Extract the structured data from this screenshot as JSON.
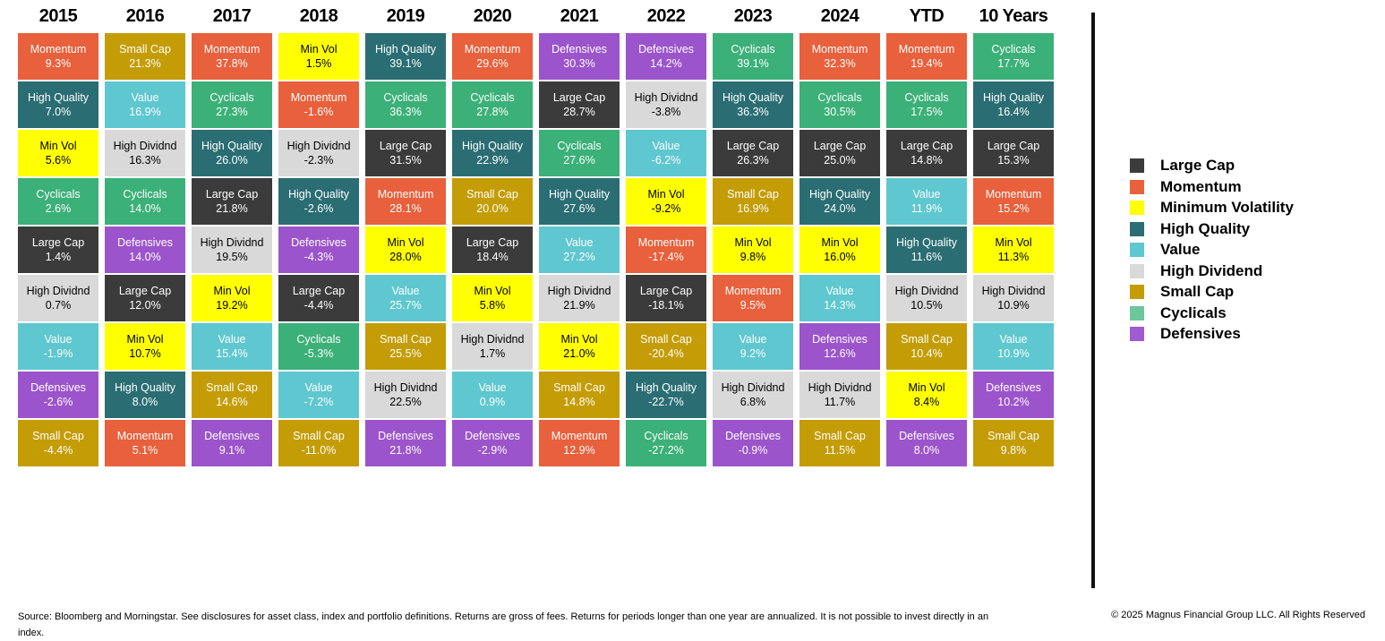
{
  "chart_data": {
    "type": "table",
    "title": "",
    "layout": {
      "columns_order": "ranked best-to-worst top-to-bottom",
      "legend_position": "right"
    },
    "factor_styles": {
      "Large Cap": {
        "bg": "#3b3b3b",
        "text": "#ffffff"
      },
      "Momentum": {
        "bg": "#e8603c",
        "text": "#ffffff"
      },
      "Min Vol": {
        "bg": "#ffff00",
        "text": "#000000"
      },
      "High Quality": {
        "bg": "#2a6d73",
        "text": "#ffffff"
      },
      "Value": {
        "bg": "#5ec7cf",
        "text": "#ffffff"
      },
      "High Dividnd": {
        "bg": "#d9d9d9",
        "text": "#000000"
      },
      "Small Cap": {
        "bg": "#c49c06",
        "text": "#ffffff"
      },
      "Cyclicals": {
        "bg": "#3bb078",
        "text": "#ffffff"
      },
      "Defensives": {
        "bg": "#9b54cb",
        "text": "#ffffff"
      }
    },
    "columns": [
      {
        "label": "2015",
        "rows": [
          {
            "factor": "Momentum",
            "value": 9.3
          },
          {
            "factor": "High Quality",
            "value": 7.0
          },
          {
            "factor": "Min Vol",
            "value": 5.6
          },
          {
            "factor": "Cyclicals",
            "value": 2.6
          },
          {
            "factor": "Large Cap",
            "value": 1.4
          },
          {
            "factor": "High Dividnd",
            "value": 0.7
          },
          {
            "factor": "Value",
            "value": -1.9
          },
          {
            "factor": "Defensives",
            "value": -2.6
          },
          {
            "factor": "Small Cap",
            "value": -4.4
          }
        ]
      },
      {
        "label": "2016",
        "rows": [
          {
            "factor": "Small Cap",
            "value": 21.3
          },
          {
            "factor": "Value",
            "value": 16.9
          },
          {
            "factor": "High Dividnd",
            "value": 16.3
          },
          {
            "factor": "Cyclicals",
            "value": 14.0
          },
          {
            "factor": "Defensives",
            "value": 14.0
          },
          {
            "factor": "Large Cap",
            "value": 12.0
          },
          {
            "factor": "Min Vol",
            "value": 10.7
          },
          {
            "factor": "High Quality",
            "value": 8.0
          },
          {
            "factor": "Momentum",
            "value": 5.1
          }
        ]
      },
      {
        "label": "2017",
        "rows": [
          {
            "factor": "Momentum",
            "value": 37.8
          },
          {
            "factor": "Cyclicals",
            "value": 27.3
          },
          {
            "factor": "High Quality",
            "value": 26.0
          },
          {
            "factor": "Large Cap",
            "value": 21.8
          },
          {
            "factor": "High Dividnd",
            "value": 19.5
          },
          {
            "factor": "Min Vol",
            "value": 19.2
          },
          {
            "factor": "Value",
            "value": 15.4
          },
          {
            "factor": "Small Cap",
            "value": 14.6
          },
          {
            "factor": "Defensives",
            "value": 9.1
          }
        ]
      },
      {
        "label": "2018",
        "rows": [
          {
            "factor": "Min Vol",
            "value": 1.5
          },
          {
            "factor": "Momentum",
            "value": -1.6
          },
          {
            "factor": "High Dividnd",
            "value": -2.3
          },
          {
            "factor": "High Quality",
            "value": -2.6
          },
          {
            "factor": "Defensives",
            "value": -4.3
          },
          {
            "factor": "Large Cap",
            "value": -4.4
          },
          {
            "factor": "Cyclicals",
            "value": -5.3
          },
          {
            "factor": "Value",
            "value": -7.2
          },
          {
            "factor": "Small Cap",
            "value": -11.0
          }
        ]
      },
      {
        "label": "2019",
        "rows": [
          {
            "factor": "High Quality",
            "value": 39.1
          },
          {
            "factor": "Cyclicals",
            "value": 36.3
          },
          {
            "factor": "Large Cap",
            "value": 31.5
          },
          {
            "factor": "Momentum",
            "value": 28.1
          },
          {
            "factor": "Min Vol",
            "value": 28.0
          },
          {
            "factor": "Value",
            "value": 25.7
          },
          {
            "factor": "Small Cap",
            "value": 25.5
          },
          {
            "factor": "High Dividnd",
            "value": 22.5
          },
          {
            "factor": "Defensives",
            "value": 21.8
          }
        ]
      },
      {
        "label": "2020",
        "rows": [
          {
            "factor": "Momentum",
            "value": 29.6
          },
          {
            "factor": "Cyclicals",
            "value": 27.8
          },
          {
            "factor": "High Quality",
            "value": 22.9
          },
          {
            "factor": "Small Cap",
            "value": 20.0
          },
          {
            "factor": "Large Cap",
            "value": 18.4
          },
          {
            "factor": "Min Vol",
            "value": 5.8
          },
          {
            "factor": "High Dividnd",
            "value": 1.7
          },
          {
            "factor": "Value",
            "value": 0.9
          },
          {
            "factor": "Defensives",
            "value": -2.9
          }
        ]
      },
      {
        "label": "2021",
        "rows": [
          {
            "factor": "Defensives",
            "value": 30.3
          },
          {
            "factor": "Large Cap",
            "value": 28.7
          },
          {
            "factor": "Cyclicals",
            "value": 27.6
          },
          {
            "factor": "High Quality",
            "value": 27.6
          },
          {
            "factor": "Value",
            "value": 27.2
          },
          {
            "factor": "High Dividnd",
            "value": 21.9
          },
          {
            "factor": "Min Vol",
            "value": 21.0
          },
          {
            "factor": "Small Cap",
            "value": 14.8
          },
          {
            "factor": "Momentum",
            "value": 12.9
          }
        ]
      },
      {
        "label": "2022",
        "rows": [
          {
            "factor": "Defensives",
            "value": 14.2
          },
          {
            "factor": "High Dividnd",
            "value": -3.8
          },
          {
            "factor": "Value",
            "value": -6.2
          },
          {
            "factor": "Min Vol",
            "value": -9.2
          },
          {
            "factor": "Momentum",
            "value": -17.4
          },
          {
            "factor": "Large Cap",
            "value": -18.1
          },
          {
            "factor": "Small Cap",
            "value": -20.4
          },
          {
            "factor": "High Quality",
            "value": -22.7
          },
          {
            "factor": "Cyclicals",
            "value": -27.2
          }
        ]
      },
      {
        "label": "2023",
        "rows": [
          {
            "factor": "Cyclicals",
            "value": 39.1
          },
          {
            "factor": "High Quality",
            "value": 36.3
          },
          {
            "factor": "Large Cap",
            "value": 26.3
          },
          {
            "factor": "Small Cap",
            "value": 16.9
          },
          {
            "factor": "Min Vol",
            "value": 9.8
          },
          {
            "factor": "Momentum",
            "value": 9.5
          },
          {
            "factor": "Value",
            "value": 9.2
          },
          {
            "factor": "High Dividnd",
            "value": 6.8
          },
          {
            "factor": "Defensives",
            "value": -0.9
          }
        ]
      },
      {
        "label": "2024",
        "rows": [
          {
            "factor": "Momentum",
            "value": 32.3
          },
          {
            "factor": "Cyclicals",
            "value": 30.5
          },
          {
            "factor": "Large Cap",
            "value": 25.0
          },
          {
            "factor": "High Quality",
            "value": 24.0
          },
          {
            "factor": "Min Vol",
            "value": 16.0
          },
          {
            "factor": "Value",
            "value": 14.3
          },
          {
            "factor": "Defensives",
            "value": 12.6
          },
          {
            "factor": "High Dividnd",
            "value": 11.7
          },
          {
            "factor": "Small Cap",
            "value": 11.5
          }
        ]
      },
      {
        "label": "YTD",
        "rows": [
          {
            "factor": "Momentum",
            "value": 19.4
          },
          {
            "factor": "Cyclicals",
            "value": 17.5
          },
          {
            "factor": "Large Cap",
            "value": 14.8
          },
          {
            "factor": "Value",
            "value": 11.9
          },
          {
            "factor": "High Quality",
            "value": 11.6
          },
          {
            "factor": "High Dividnd",
            "value": 10.5
          },
          {
            "factor": "Small Cap",
            "value": 10.4
          },
          {
            "factor": "Min Vol",
            "value": 8.4
          },
          {
            "factor": "Defensives",
            "value": 8.0
          }
        ]
      },
      {
        "label": "10 Years",
        "rows": [
          {
            "factor": "Cyclicals",
            "value": 17.7
          },
          {
            "factor": "High Quality",
            "value": 16.4
          },
          {
            "factor": "Large Cap",
            "value": 15.3
          },
          {
            "factor": "Momentum",
            "value": 15.2
          },
          {
            "factor": "Min Vol",
            "value": 11.3
          },
          {
            "factor": "High Dividnd",
            "value": 10.9
          },
          {
            "factor": "Value",
            "value": 10.9
          },
          {
            "factor": "Defensives",
            "value": 10.2
          },
          {
            "factor": "Small Cap",
            "value": 9.8
          }
        ]
      }
    ],
    "legend": {
      "items": [
        {
          "label": "Large Cap",
          "color": "#3b3b3b"
        },
        {
          "label": "Momentum",
          "color": "#e8603c"
        },
        {
          "label": "Minimum Volatility",
          "color": "#ffff00"
        },
        {
          "label": "High Quality",
          "color": "#2a6d73"
        },
        {
          "label": "Value",
          "color": "#5ec7cf"
        },
        {
          "label": "High Dividend",
          "color": "#d9d9d9"
        },
        {
          "label": "Small Cap",
          "color": "#c49c06"
        },
        {
          "label": "Cyclicals",
          "color": "#6cc79c"
        },
        {
          "label": "Defensives",
          "color": "#a05bd2"
        }
      ]
    }
  },
  "footer": {
    "source": "Source: Bloomberg and Morningstar. See disclosures for asset class, index and portfolio definitions. Returns are gross of fees. Returns for periods longer than one year are annualized. It is not possible to invest directly in an index.",
    "copyright": "© 2025 Magnus Financial Group LLC. All Rights Reserved"
  }
}
